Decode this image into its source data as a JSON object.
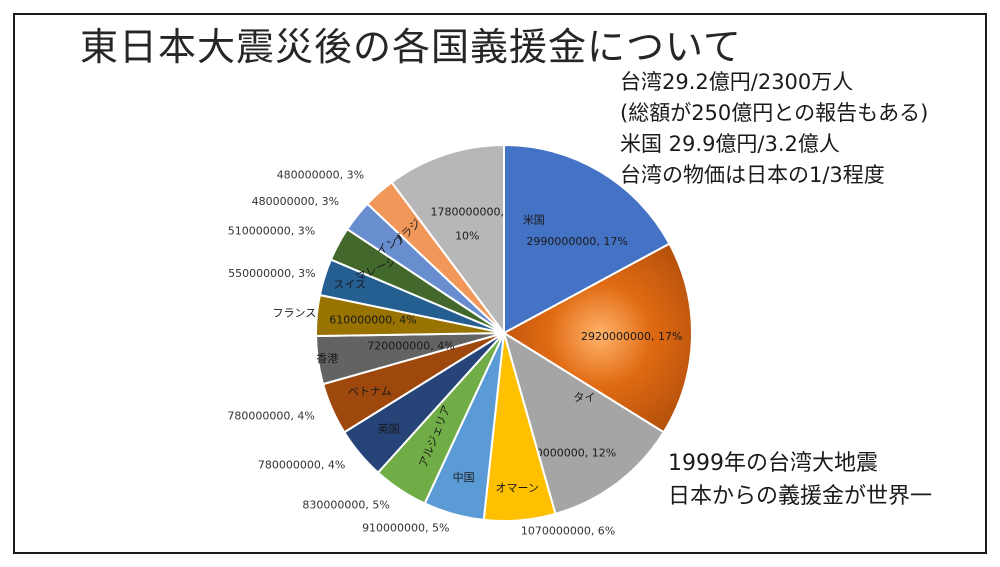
{
  "title": "東日本大震災後の各国義援金について",
  "notes_top": [
    "台湾29.2億円/2300万人",
    "(総額が250億円との報告もある)",
    "米国 29.9億円/3.2億人",
    "台湾の物価は日本の1/3程度"
  ],
  "notes_bottom": [
    "1999年の台湾大地震",
    "日本からの義援金が世界一"
  ],
  "chart_data": {
    "type": "pie",
    "start_angle_deg": 0,
    "direction": "clockwise",
    "slices": [
      {
        "name": "米国",
        "value": 2990000000,
        "label": "2990000000, 17%",
        "color": "#4472C4"
      },
      {
        "name": "",
        "value": 2920000000,
        "label": "2920000000, 17%",
        "color": "#C55A11"
      },
      {
        "name": "タイ",
        "value": 2050000000,
        "label": "2050000000, 12%",
        "color": "#A5A5A5"
      },
      {
        "name": "オマーン",
        "value": 1070000000,
        "label": "1070000000, 6%",
        "color": "#FFC000"
      },
      {
        "name": "中国",
        "value": 910000000,
        "label": "910000000, 5%",
        "color": "#5B9BD5"
      },
      {
        "name": "アルジェリア",
        "value": 830000000,
        "label": "830000000, 5%",
        "color": "#70AD47"
      },
      {
        "name": "英国",
        "value": 780000000,
        "label": "780000000, 4%",
        "color": "#264478"
      },
      {
        "name": "ベトナム",
        "value": 780000000,
        "label": "780000000, 4%",
        "color": "#9E480E"
      },
      {
        "name": "香港",
        "value": 720000000,
        "label": "720000000, 4%",
        "color": "#636363"
      },
      {
        "name": "フランス",
        "value": 610000000,
        "label": "610000000, 4%",
        "color": "#997300"
      },
      {
        "name": "スイス",
        "value": 550000000,
        "label": "550000000, 3%",
        "color": "#255E91"
      },
      {
        "name": "マレーシア",
        "value": 510000000,
        "label": "510000000, 3%",
        "color": "#43682B"
      },
      {
        "name": "インド",
        "value": 480000000,
        "label": "480000000, 3%",
        "color": "#698ED0"
      },
      {
        "name": "ブラジル",
        "value": 480000000,
        "label": "480000000, 3%",
        "color": "#F1975A"
      },
      {
        "name": "",
        "value": 1780000000,
        "label_lines": [
          "1780000000,",
          "10%"
        ],
        "color": "#B7B7B7"
      }
    ]
  }
}
